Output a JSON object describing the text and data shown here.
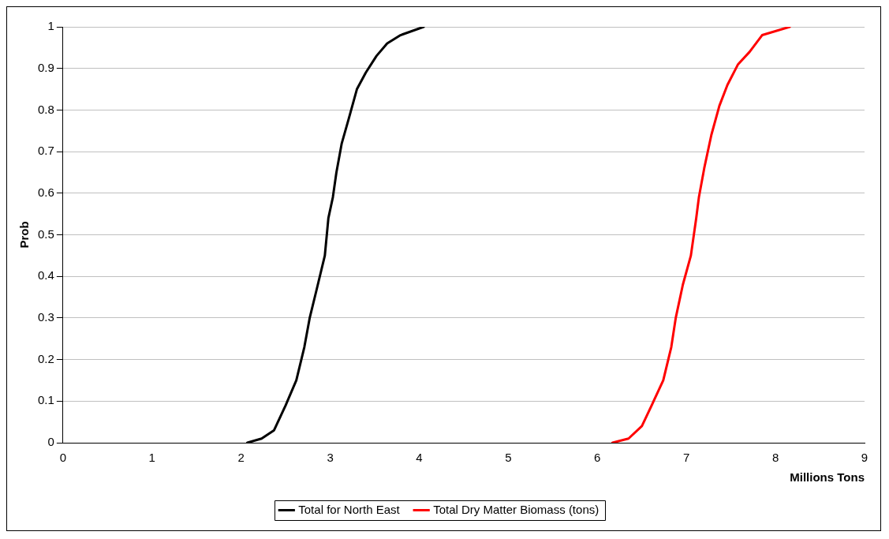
{
  "chart_data": {
    "type": "line",
    "xlabel": "Millions Tons",
    "ylabel": "Prob",
    "xlim": [
      0,
      9
    ],
    "xticks": [
      0,
      1,
      2,
      3,
      4,
      5,
      6,
      7,
      8,
      9
    ],
    "ylim": [
      0,
      1
    ],
    "yticks": [
      0,
      0.1,
      0.2,
      0.3,
      0.4,
      0.5,
      0.6,
      0.7,
      0.8,
      0.9,
      1
    ],
    "grid": "y",
    "legend": "bottom",
    "marker": "none",
    "line_style": "solid",
    "series": [
      {
        "name": "Total for North East",
        "color": "#000000",
        "x": [
          2.07,
          2.23,
          2.37,
          2.5,
          2.62,
          2.71,
          2.77,
          2.85,
          2.94,
          2.98,
          3.03,
          3.07,
          3.13,
          3.21,
          3.3,
          3.4,
          3.52,
          3.64,
          3.79,
          4.05
        ],
        "values": [
          0,
          0.01,
          0.03,
          0.09,
          0.15,
          0.23,
          0.3,
          0.37,
          0.45,
          0.54,
          0.59,
          0.65,
          0.72,
          0.78,
          0.85,
          0.89,
          0.93,
          0.96,
          0.98,
          1
        ]
      },
      {
        "name": "Total Dry Matter Biomass (tons)",
        "color": "#ff0000",
        "x": [
          6.17,
          6.35,
          6.5,
          6.61,
          6.74,
          6.83,
          6.88,
          6.96,
          7.05,
          7.11,
          7.14,
          7.2,
          7.28,
          7.37,
          7.46,
          7.58,
          7.71,
          7.85,
          8.16
        ],
        "values": [
          0,
          0.01,
          0.04,
          0.09,
          0.15,
          0.23,
          0.3,
          0.38,
          0.45,
          0.54,
          0.59,
          0.66,
          0.74,
          0.81,
          0.86,
          0.91,
          0.94,
          0.98,
          1
        ]
      }
    ]
  }
}
